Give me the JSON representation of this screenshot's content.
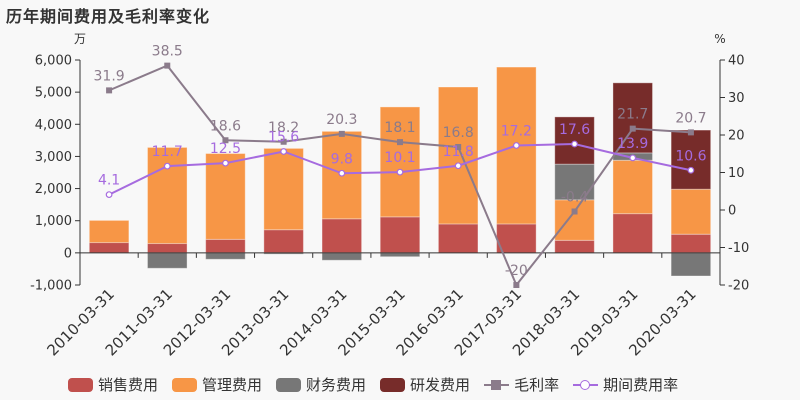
{
  "title": "历年期间费用及毛利率变化",
  "chart_data": {
    "type": "bar",
    "title": "历年期间费用及毛利率变化",
    "left_axis": {
      "unit": "万",
      "ylim": [
        -1000,
        6000
      ],
      "ticks": [
        "-1,000",
        "0",
        "1,000",
        "2,000",
        "3,000",
        "4,000",
        "5,000",
        "6,000"
      ]
    },
    "right_axis": {
      "unit": "%",
      "ylim": [
        -20,
        40
      ],
      "ticks": [
        "-20",
        "-10",
        "0",
        "10",
        "20",
        "30",
        "40"
      ]
    },
    "categories": [
      "2010-03-31",
      "2011-03-31",
      "2012-03-31",
      "2013-03-31",
      "2014-03-31",
      "2015-03-31",
      "2016-03-31",
      "2017-03-31",
      "2018-03-31",
      "2019-03-31",
      "2020-03-31"
    ],
    "series": [
      {
        "name": "销售费用",
        "type": "bar",
        "stack": true,
        "color": "#c0504d",
        "values": [
          320,
          290,
          420,
          720,
          1060,
          1120,
          900,
          900,
          390,
          1220,
          580
        ]
      },
      {
        "name": "管理费用",
        "type": "bar",
        "stack": true,
        "color": "#f79646",
        "values": [
          690,
          2990,
          2670,
          2530,
          2720,
          3420,
          4260,
          4880,
          1260,
          1660,
          1400
        ]
      },
      {
        "name": "财务费用",
        "type": "bar",
        "stack": true,
        "color": "#777777",
        "values": [
          0,
          -480,
          -200,
          -40,
          -230,
          -120,
          0,
          0,
          1110,
          230,
          -720
        ]
      },
      {
        "name": "研发费用",
        "type": "bar",
        "stack": true,
        "color": "#772c2a",
        "values": [
          0,
          0,
          0,
          0,
          0,
          0,
          0,
          0,
          1470,
          2180,
          1840
        ]
      },
      {
        "name": "毛利率",
        "type": "line",
        "axis": "right",
        "color": "#8b7b8b",
        "marker": "square",
        "values": [
          31.9,
          38.5,
          18.6,
          18.2,
          20.3,
          18.1,
          16.8,
          -20,
          -0.4,
          21.7,
          20.7
        ]
      },
      {
        "name": "期间费用率",
        "type": "line",
        "axis": "right",
        "color": "#a66bdf",
        "marker": "circle",
        "values": [
          4.1,
          11.7,
          12.5,
          15.6,
          9.8,
          10.1,
          11.8,
          17.2,
          17.6,
          13.9,
          10.6
        ]
      }
    ],
    "grid": false,
    "legend_position": "bottom"
  }
}
